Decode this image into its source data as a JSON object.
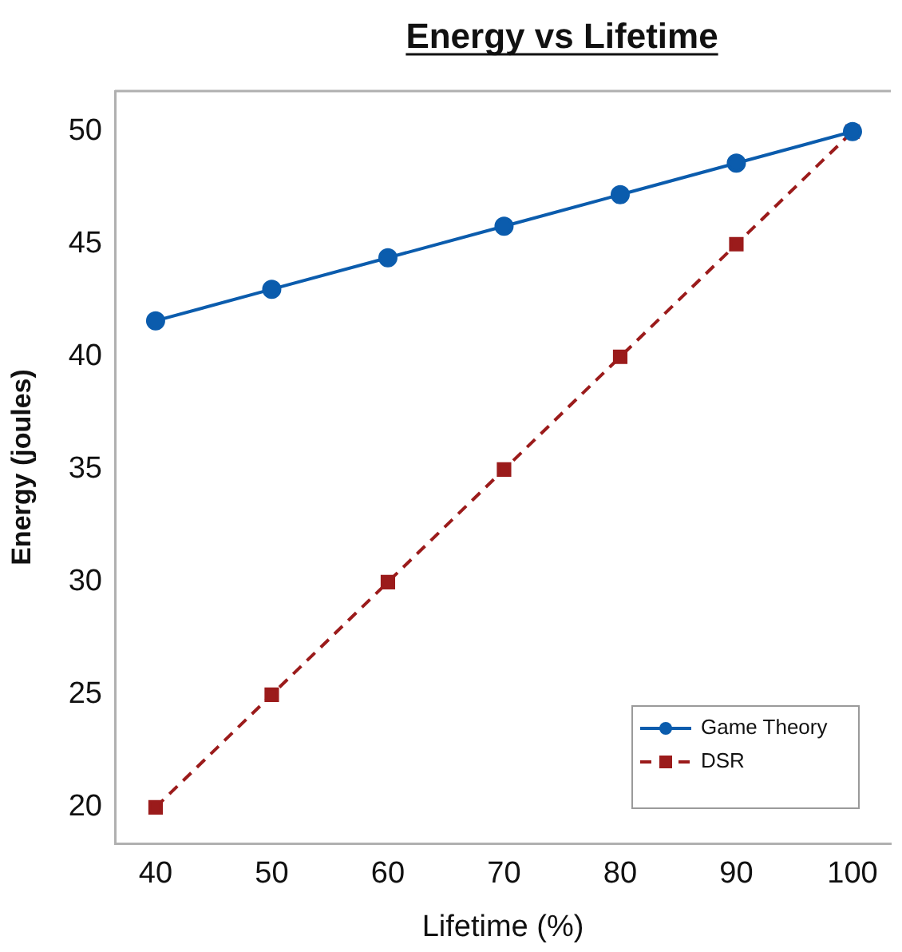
{
  "chart_data": {
    "type": "line",
    "title": "Energy vs Lifetime",
    "xlabel": "Lifetime (%)",
    "ylabel": "Energy (joules)",
    "x": [
      40,
      50,
      60,
      70,
      80,
      90,
      100
    ],
    "xlim": [
      36.5,
      103.3
    ],
    "xticks": [
      40,
      50,
      60,
      70,
      80,
      90,
      100
    ],
    "ylim": [
      18.4,
      51.8
    ],
    "yticks": [
      20,
      25,
      30,
      35,
      40,
      45,
      50
    ],
    "grid": false,
    "legend": "bottom right",
    "series": [
      {
        "name": "Game Theory",
        "color": "#0b5cad",
        "values": [
          41.6,
          43.0,
          44.4,
          45.8,
          47.2,
          48.6,
          50.0
        ],
        "marker": "circle",
        "line_style": "solid"
      },
      {
        "name": "DSR",
        "color": "#9b1b1b",
        "values": [
          20,
          25,
          30,
          35,
          40,
          45,
          50
        ],
        "marker": "square",
        "line_style": "dashed"
      }
    ]
  }
}
